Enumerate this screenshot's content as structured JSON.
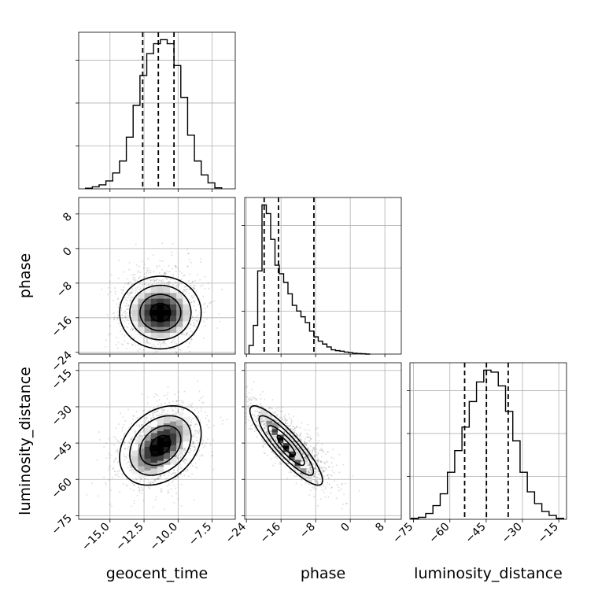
{
  "chart_data": {
    "type": "corner",
    "parameters": [
      "geocent_time",
      "phase",
      "luminosity_distance"
    ],
    "ranges": {
      "geocent_time": [
        -17.3,
        -5.8
      ],
      "phase": [
        -24.4,
        11.8
      ],
      "luminosity_distance": [
        -76.5,
        -11.8
      ]
    },
    "ticks": {
      "geocent_time": [
        -15.0,
        -12.5,
        -10.0,
        -7.5
      ],
      "phase": [
        -24,
        -16,
        -8,
        0,
        8
      ],
      "luminosity_distance": [
        -75,
        -60,
        -45,
        -30,
        -15
      ]
    },
    "tick_labels": {
      "geocent_time": [
        "−15.0",
        "−12.5",
        "−10.0",
        "−7.5"
      ],
      "phase": [
        "−24",
        "−16",
        "−8",
        "0",
        "8"
      ],
      "luminosity_distance": [
        "−75",
        "−60",
        "−45",
        "−30",
        "−15"
      ]
    },
    "histograms": {
      "geocent_time": {
        "bin_edges": [
          -16.8,
          -16.3,
          -15.8,
          -15.3,
          -14.8,
          -14.3,
          -13.8,
          -13.3,
          -12.8,
          -12.3,
          -11.8,
          -11.3,
          -10.8,
          -10.3,
          -9.8,
          -9.3,
          -8.8,
          -8.3,
          -7.8,
          -7.3,
          -6.8
        ],
        "counts": [
          0.3,
          1,
          2,
          4,
          8,
          14,
          26,
          42,
          57,
          68,
          73,
          75,
          73,
          62,
          46,
          27,
          14,
          7,
          3,
          0.5
        ]
      },
      "phase": {
        "bin_edges": [
          -23.4,
          -22.4,
          -21.4,
          -20.4,
          -19.4,
          -18.4,
          -17.4,
          -16.4,
          -15.4,
          -14.4,
          -13.4,
          -12.4,
          -11.4,
          -10.4,
          -9.4,
          -8.4,
          -7.4,
          -6.4,
          -5.4,
          -4.4,
          -3.4,
          -2.4,
          -1.4,
          -0.4,
          0.6,
          1.6,
          2.6,
          3.6,
          4.6
        ],
        "counts": [
          3,
          10,
          29,
          52,
          49,
          40,
          31,
          28,
          25,
          21,
          17,
          15,
          13,
          11,
          8,
          6,
          4.5,
          3.5,
          2.5,
          1.5,
          1.2,
          1,
          0.7,
          0.5,
          0.3,
          0.2,
          0.1,
          0
        ]
      },
      "luminosity_distance": {
        "bin_edges": [
          -76,
          -73,
          -70,
          -67,
          -64,
          -61,
          -58,
          -55,
          -52,
          -49,
          -46,
          -43,
          -40,
          -37,
          -34,
          -31,
          -28,
          -25,
          -22,
          -19,
          -16,
          -13
        ],
        "counts": [
          0.5,
          1,
          3,
          7,
          13,
          24,
          35,
          47,
          60,
          70,
          76,
          75,
          68,
          55,
          40,
          24,
          14,
          8,
          4,
          2,
          0.5
        ]
      },
      "quantile_lines": {
        "geocent_time": [
          -12.6,
          -11.45,
          -10.3
        ],
        "phase": [
          -19.9,
          -16.6,
          -8.4
        ],
        "luminosity_distance": [
          -53.9,
          -44.9,
          -35.9
        ]
      }
    },
    "pairs": [
      {
        "x": "geocent_time",
        "y": "phase",
        "mean": [
          -11.3,
          -14.8
        ],
        "sd": [
          1.5,
          4.2
        ],
        "rho": 0.0
      },
      {
        "x": "geocent_time",
        "y": "luminosity_distance",
        "mean": [
          -11.3,
          -46.0
        ],
        "sd": [
          1.5,
          8.2
        ],
        "rho": 0.3
      },
      {
        "x": "phase",
        "y": "luminosity_distance",
        "mean": [
          -14.8,
          -46.0
        ],
        "sd": [
          4.2,
          8.2
        ],
        "rho": -0.88
      }
    ]
  }
}
